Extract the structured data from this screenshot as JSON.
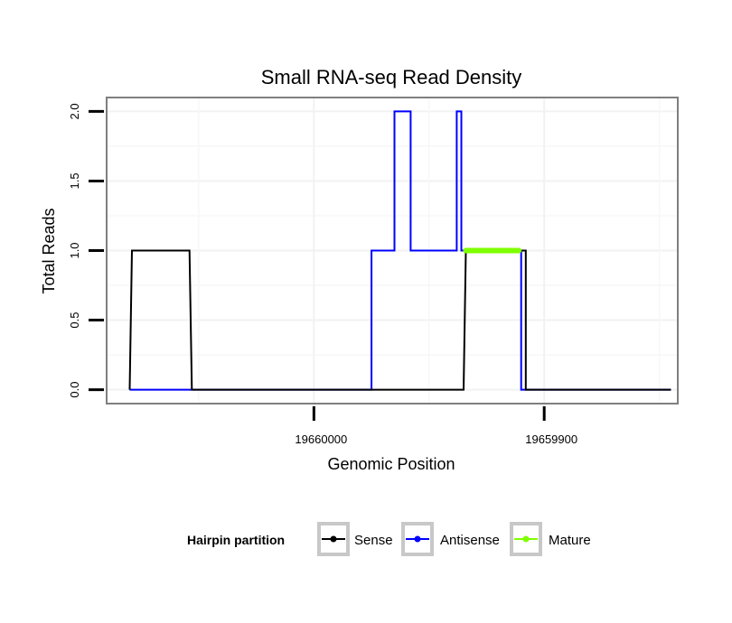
{
  "chart_data": {
    "type": "line",
    "title": "Small RNA-seq Read Density",
    "xlabel": "Genomic Position",
    "ylabel": "Total Reads",
    "x_reversed": true,
    "xlim": [
      19660090,
      19659842
    ],
    "ylim": [
      -0.1,
      2.1
    ],
    "x_ticks": [
      {
        "value": 19660000,
        "label": "19660000"
      },
      {
        "value": 19659900,
        "label": "19659900"
      }
    ],
    "y_ticks": [
      {
        "value": 0.0,
        "label": "0.0"
      },
      {
        "value": 0.5,
        "label": "0.5"
      },
      {
        "value": 1.0,
        "label": "1.0"
      },
      {
        "value": 1.5,
        "label": "1.5"
      },
      {
        "value": 2.0,
        "label": "2.0"
      }
    ],
    "legend": {
      "title": "Hairpin partition",
      "position": "bottom",
      "entries": [
        "Sense",
        "Antisense",
        "Mature"
      ]
    },
    "series": [
      {
        "name": "Antisense",
        "color": "#0000ff",
        "x": [
          19660080,
          19660050,
          19660050,
          19660015,
          19659990,
          19659975,
          19659975,
          19659965,
          19659965,
          19659958,
          19659958,
          19659951,
          19659951,
          19659938,
          19659938,
          19659936,
          19659936,
          19659931,
          19659931,
          19659911,
          19659911,
          19659910,
          19659910,
          19659907,
          19659907,
          19659845
        ],
        "y": [
          0,
          0,
          0,
          0,
          0,
          0,
          1,
          1,
          2,
          2,
          1,
          1,
          1,
          1,
          2,
          2,
          1,
          1,
          1,
          1,
          1,
          1,
          0,
          0,
          0,
          0
        ]
      },
      {
        "name": "Sense",
        "color": "#000000",
        "x": [
          19660080,
          19660079,
          19660079,
          19660054,
          19660053,
          19660040,
          19660000,
          19659955,
          19659935,
          19659934,
          19659920,
          19659910,
          19659910,
          19659908,
          19659908,
          19659880,
          19659845
        ],
        "y": [
          0,
          1,
          1,
          1,
          0,
          0,
          0,
          0,
          0,
          1,
          1,
          1,
          1,
          1,
          0,
          0,
          0
        ]
      },
      {
        "name": "Mature",
        "color": "#7fff00",
        "x": [
          19659934,
          19659911
        ],
        "y": [
          1,
          1
        ]
      }
    ]
  }
}
